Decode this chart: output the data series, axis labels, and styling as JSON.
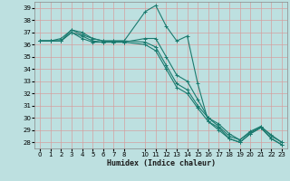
{
  "xlabel": "Humidex (Indice chaleur)",
  "bg_color": "#bde0e0",
  "grid_color": "#d4a0a0",
  "line_color": "#1a7a6e",
  "xlim": [
    -0.5,
    23.5
  ],
  "ylim": [
    27.5,
    39.5
  ],
  "xticks": [
    0,
    1,
    2,
    3,
    4,
    5,
    6,
    7,
    8,
    10,
    11,
    12,
    13,
    14,
    15,
    16,
    17,
    18,
    19,
    20,
    21,
    22,
    23
  ],
  "yticks": [
    28,
    29,
    30,
    31,
    32,
    33,
    34,
    35,
    36,
    37,
    38,
    39
  ],
  "series": [
    {
      "x": [
        0,
        1,
        2,
        3,
        4,
        5,
        6,
        7,
        8,
        10,
        11,
        12,
        13,
        14,
        15,
        16,
        17,
        18,
        19,
        20,
        21,
        22,
        23
      ],
      "y": [
        36.3,
        36.3,
        36.3,
        37.0,
        36.5,
        36.2,
        36.2,
        36.2,
        36.2,
        36.5,
        36.5,
        35.0,
        33.5,
        33.0,
        31.5,
        30.0,
        29.5,
        28.7,
        28.2,
        28.8,
        29.3,
        28.5,
        28.0
      ]
    },
    {
      "x": [
        0,
        1,
        2,
        3,
        4,
        5,
        6,
        7,
        8,
        10,
        11,
        12,
        13,
        14,
        15,
        16,
        17,
        18,
        19,
        20,
        21,
        22,
        23
      ],
      "y": [
        36.3,
        36.3,
        36.3,
        37.0,
        36.7,
        36.3,
        36.2,
        36.2,
        36.2,
        36.0,
        35.5,
        34.0,
        32.5,
        32.0,
        30.8,
        29.7,
        29.0,
        28.3,
        28.0,
        28.7,
        29.2,
        28.3,
        27.8
      ]
    },
    {
      "x": [
        0,
        1,
        2,
        3,
        4,
        5,
        6,
        7,
        8,
        10,
        11,
        12,
        13,
        14,
        15,
        16,
        17,
        18,
        19,
        20,
        21,
        22,
        23
      ],
      "y": [
        36.3,
        36.3,
        36.5,
        37.2,
        37.0,
        36.5,
        36.3,
        36.3,
        36.3,
        36.2,
        35.8,
        34.3,
        32.8,
        32.3,
        31.0,
        30.0,
        29.3,
        28.5,
        28.2,
        28.9,
        29.3,
        28.6,
        28.0
      ]
    },
    {
      "x": [
        0,
        1,
        2,
        3,
        4,
        5,
        6,
        7,
        8,
        10,
        11,
        12,
        13,
        14,
        15,
        16,
        17,
        18,
        19,
        20,
        21,
        22,
        23
      ],
      "y": [
        36.3,
        36.3,
        36.3,
        37.2,
        36.8,
        36.5,
        36.3,
        36.3,
        36.3,
        38.7,
        39.2,
        37.5,
        36.3,
        36.7,
        32.8,
        29.7,
        29.2,
        28.3,
        28.0,
        28.7,
        29.2,
        28.3,
        27.8
      ]
    }
  ]
}
